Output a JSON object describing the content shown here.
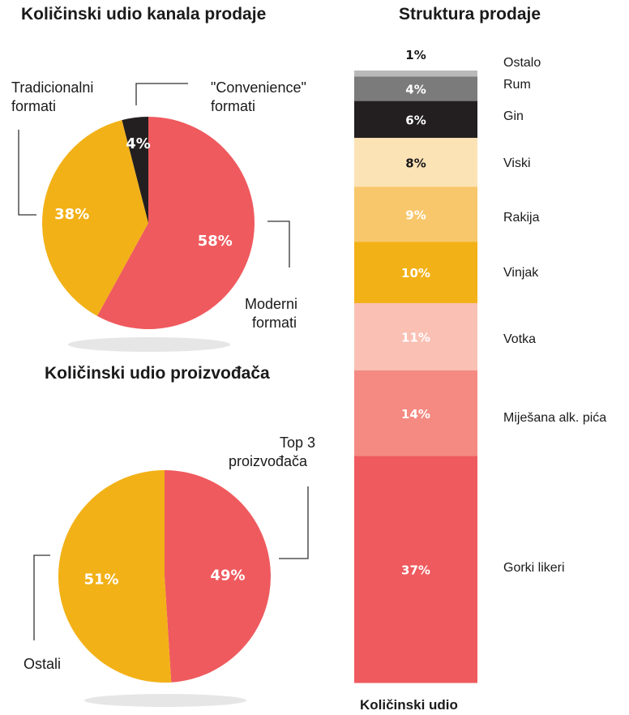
{
  "chart_data": [
    {
      "type": "pie",
      "title": "Količinski udio kanala prodaje",
      "slices": [
        {
          "name": "Moderni formati",
          "value": 58,
          "label": "58%",
          "color": "#EF5A5E"
        },
        {
          "name": "Tradicionalni formati",
          "value": 38,
          "label": "38%",
          "color": "#F2B117"
        },
        {
          "name": "\"Convenience\" formati",
          "value": 4,
          "label": "4%",
          "color": "#231F20"
        }
      ],
      "annotations": {
        "traditional_line1": "Tradicionalni",
        "traditional_line2": "formati",
        "convenience_line1": "\"Convenience\"",
        "convenience_line2": "formati",
        "modern_line1": "Moderni",
        "modern_line2": "formati"
      }
    },
    {
      "type": "pie",
      "title": "Količinski udio proizvođača",
      "slices": [
        {
          "name": "Top 3 proizvođača",
          "value": 49,
          "label": "49%",
          "color": "#EF5A5E"
        },
        {
          "name": "Ostali",
          "value": 51,
          "label": "51%",
          "color": "#F2B117"
        }
      ],
      "annotations": {
        "top3_line1": "Top 3",
        "top3_line2": "proizvođača",
        "others": "Ostali"
      }
    },
    {
      "type": "bar",
      "stacked": true,
      "title": "Struktura prodaje",
      "xlabel": "Količinski udio",
      "categories": [
        "Ostalo",
        "Rum",
        "Gin",
        "Viski",
        "Rakija",
        "Vinjak",
        "Votka",
        "Miješana alk. pića",
        "Gorki likeri"
      ],
      "values": [
        1,
        4,
        6,
        8,
        9,
        10,
        11,
        14,
        37
      ],
      "labels": [
        "1%",
        "4%",
        "6%",
        "8%",
        "9%",
        "10%",
        "11%",
        "14%",
        "37%"
      ],
      "colors": [
        "#B9B9B9",
        "#7B7B7B",
        "#231F20",
        "#FCE3B6",
        "#F8C76B",
        "#F2B117",
        "#FAC0B4",
        "#F48A82",
        "#EF5A5E"
      ],
      "label_colors": [
        "#1a1a1a",
        "#ffffff",
        "#ffffff",
        "#1a1a1a",
        "#ffffff",
        "#ffffff",
        "#ffffff",
        "#ffffff",
        "#ffffff"
      ]
    }
  ]
}
